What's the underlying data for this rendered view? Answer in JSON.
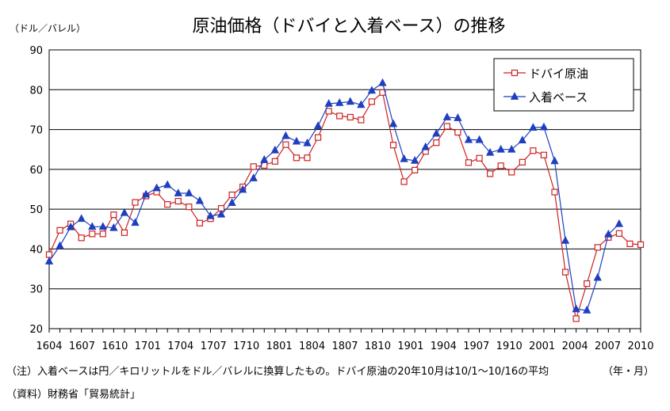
{
  "chart_data": {
    "type": "line",
    "title": "原油価格（ドバイと入着ベース）の推移",
    "ylabel": "（ドル／バレル）",
    "xlabel": "（年・月）",
    "ylim": [
      20,
      90
    ],
    "yticks": [
      "20",
      "30",
      "40",
      "50",
      "60",
      "70",
      "80",
      "90"
    ],
    "grid": true,
    "legend_position": "top-right",
    "x_tick_labels": [
      "1604",
      "1607",
      "1610",
      "1701",
      "1704",
      "1707",
      "1710",
      "1801",
      "1804",
      "1807",
      "1810",
      "1901",
      "1904",
      "1907",
      "1910",
      "2001",
      "2004",
      "2007",
      "2010"
    ],
    "series": [
      {
        "name": "ドバイ原油",
        "color": "#cc2222",
        "marker": "square-open",
        "values": [
          38.6,
          44.7,
          46.3,
          42.8,
          43.8,
          43.8,
          48.6,
          44.1,
          51.7,
          53.3,
          54.3,
          51.2,
          52.0,
          50.6,
          46.5,
          47.6,
          50.2,
          53.6,
          55.6,
          60.7,
          61.0,
          62.0,
          66.2,
          62.9,
          62.9,
          68.0,
          74.6,
          73.4,
          73.1,
          72.4,
          77.0,
          79.3,
          66.1,
          56.9,
          59.8,
          64.5,
          66.7,
          70.8,
          69.3,
          61.7,
          62.8,
          58.9,
          60.9,
          59.3,
          61.8,
          64.7,
          63.6,
          54.3,
          34.2,
          22.5,
          31.3,
          40.4,
          42.9,
          43.9,
          41.3,
          41.1
        ]
      },
      {
        "name": "入着ベース",
        "color": "#1f3fbf",
        "marker": "triangle-filled",
        "values": [
          36.9,
          40.8,
          45.5,
          47.6,
          45.6,
          45.6,
          45.3,
          49.1,
          46.6,
          53.7,
          55.3,
          56.1,
          54.0,
          54.0,
          52.1,
          48.3,
          48.7,
          51.6,
          54.9,
          57.8,
          62.4,
          64.8,
          68.4,
          67.0,
          66.6,
          70.9,
          76.5,
          76.7,
          77.0,
          76.2,
          79.8,
          81.7,
          71.4,
          62.6,
          62.2,
          65.6,
          69.0,
          73.1,
          72.9,
          67.4,
          67.4,
          64.2,
          65.0,
          65.0,
          67.3,
          70.5,
          70.6,
          62.1,
          42.1,
          24.9,
          24.6,
          32.8,
          43.7,
          46.3
        ]
      }
    ]
  },
  "notes": {
    "footnote": "（注）入着ベースは円／キロリットルをドル／バレルに換算したもの。ドバイ原油の20年10月は10/1〜10/16の平均",
    "source": "（資料）財務省「貿易統計」"
  }
}
